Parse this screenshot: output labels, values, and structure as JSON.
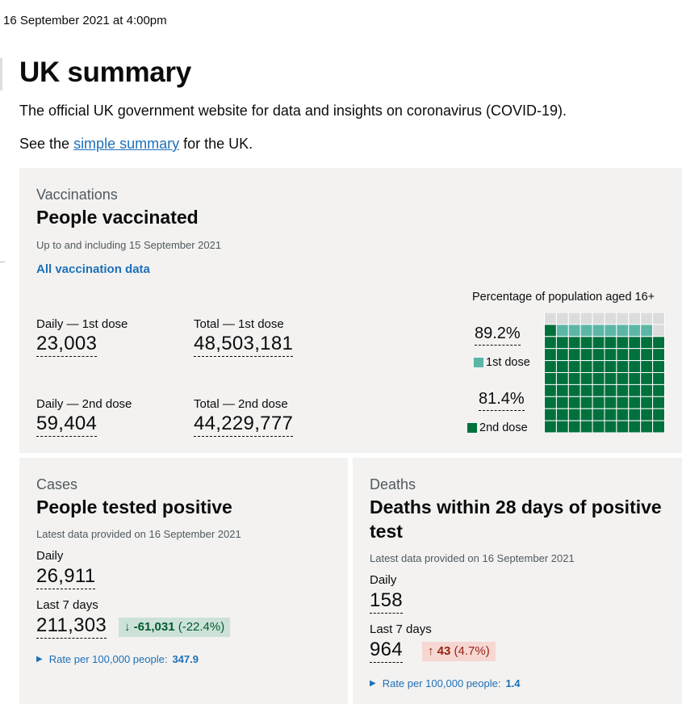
{
  "timestamp": "16 September 2021 at 4:00pm",
  "page": {
    "title": "UK summary",
    "intro": "The official UK government website for data and insights on coronavirus (COVID-19).",
    "see_prefix": "See the ",
    "see_link": "simple summary",
    "see_suffix": " for the UK."
  },
  "vaccinations": {
    "category": "Vaccinations",
    "heading": "People vaccinated",
    "updated": "Up to and including 15 September 2021",
    "all_link": "All vaccination data",
    "daily_first_label": "Daily — 1st dose",
    "daily_first_value": "23,003",
    "total_first_label": "Total — 1st dose",
    "total_first_value": "48,503,181",
    "daily_second_label": "Daily — 2nd dose",
    "daily_second_value": "59,404",
    "total_second_label": "Total — 2nd dose",
    "total_second_value": "44,229,777",
    "percentage_title": "Percentage of population aged 16+",
    "first_dose_pct": "89.2%",
    "first_dose_legend": "1st dose",
    "second_dose_pct": "81.4%",
    "second_dose_legend": "2nd dose",
    "first_dose_fraction": 0.892,
    "second_dose_fraction": 0.814,
    "colors": {
      "first_dose": "#5bb6a6",
      "second_dose": "#00703c",
      "empty": "#dcdcdc",
      "grid_line": "#ffffff"
    }
  },
  "cases": {
    "category": "Cases",
    "heading": "People tested positive",
    "updated": "Latest data provided on 16 September 2021",
    "daily_label": "Daily",
    "daily_value": "26,911",
    "week_label": "Last 7 days",
    "week_value": "211,303",
    "change_arrow": "↓",
    "change_value": "-61,031",
    "change_pct": "(-22.4%)",
    "rate_label": "Rate per 100,000 people:",
    "rate_value": "347.9"
  },
  "deaths": {
    "category": "Deaths",
    "heading": "Deaths within 28 days of positive test",
    "updated": "Latest data provided on 16 September 2021",
    "daily_label": "Daily",
    "daily_value": "158",
    "week_label": "Last 7 days",
    "week_value": "964",
    "change_arrow": "↑",
    "change_value": "43",
    "change_pct": "(4.7%)",
    "rate_label": "Rate per 100,000 people:",
    "rate_value": "1.4"
  }
}
